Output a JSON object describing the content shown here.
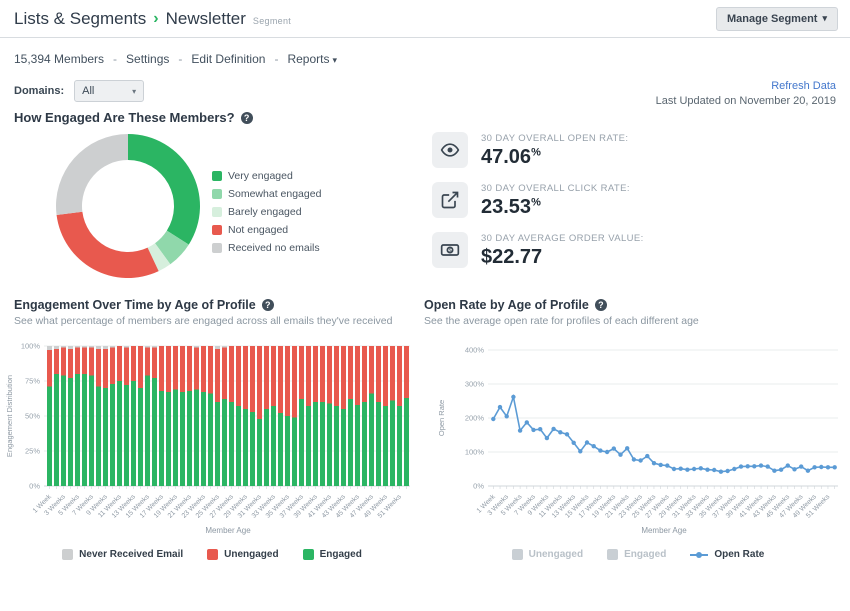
{
  "icons": {
    "breadcrumb_chevron": "›",
    "caret_down": "▾",
    "help_glyph": "?"
  },
  "header": {
    "breadcrumb_parent": "Lists & Segments",
    "title": "Newsletter",
    "badge": "Segment",
    "manage_button": "Manage Segment"
  },
  "toolbar": {
    "members": "15,394 Members",
    "separator": "-",
    "settings": "Settings",
    "edit_definition": "Edit Definition",
    "reports": "Reports",
    "domains_label": "Domains:",
    "domains_value": "All",
    "refresh": "Refresh Data",
    "last_updated": "Last Updated on November 20, 2019"
  },
  "sections": {
    "engagement": {
      "title": "How Engaged Are These Members?"
    },
    "over_time": {
      "title": "Engagement Over Time by Age of Profile",
      "subtitle": "See what percentage of members are engaged across all emails they've received"
    },
    "open_rate": {
      "title": "Open Rate by Age of Profile",
      "subtitle": "See the average open rate for profiles of each different age"
    }
  },
  "stats": {
    "open_rate": {
      "label": "30 DAY OVERALL OPEN RATE:",
      "value": "47.06",
      "suffix": "%"
    },
    "click_rate": {
      "label": "30 DAY OVERALL CLICK RATE:",
      "value": "23.53",
      "suffix": "%"
    },
    "aov": {
      "label": "30 DAY AVERAGE ORDER VALUE:",
      "value": "$22.77",
      "suffix": ""
    }
  },
  "colors": {
    "accent_green": "#2bb563",
    "light_green": "#90d8ab",
    "pale_green": "#d6efdd",
    "red": "#e8594e",
    "gray": "#cdcfd0",
    "line_blue": "#5b9bd5",
    "link_blue": "#4377cc"
  },
  "chart_data": [
    {
      "type": "pie",
      "donut": true,
      "title": "How Engaged Are These Members?",
      "legend_position": "right",
      "labels": [
        "Very engaged",
        "Somewhat engaged",
        "Barely engaged",
        "Not engaged",
        "Received no emails"
      ],
      "values": [
        34,
        6,
        3,
        30,
        27
      ],
      "colors": [
        "#2bb563",
        "#90d8ab",
        "#d6efdd",
        "#e8594e",
        "#cdcfd0"
      ]
    },
    {
      "type": "bar",
      "stacked": true,
      "title": "Engagement Over Time by Age of Profile",
      "xlabel": "Member Age",
      "ylabel": "Engagement Distribution",
      "ylim": [
        0,
        100
      ],
      "yticks": [
        "0%",
        "25%",
        "50%",
        "75%",
        "100%"
      ],
      "ytick_values": [
        0,
        25,
        50,
        75,
        100
      ],
      "label_every": 2,
      "categories": [
        "1 Week",
        "2 Weeks",
        "3 Weeks",
        "4 Weeks",
        "5 Weeks",
        "6 Weeks",
        "7 Weeks",
        "8 Weeks",
        "9 Weeks",
        "10 Weeks",
        "11 Weeks",
        "12 Weeks",
        "13 Weeks",
        "14 Weeks",
        "15 Weeks",
        "16 Weeks",
        "17 Weeks",
        "18 Weeks",
        "19 Weeks",
        "20 Weeks",
        "21 Weeks",
        "22 Weeks",
        "23 Weeks",
        "24 Weeks",
        "25 Weeks",
        "26 Weeks",
        "27 Weeks",
        "28 Weeks",
        "29 Weeks",
        "30 Weeks",
        "31 Weeks",
        "32 Weeks",
        "33 Weeks",
        "34 Weeks",
        "35 Weeks",
        "36 Weeks",
        "37 Weeks",
        "38 Weeks",
        "39 Weeks",
        "40 Weeks",
        "41 Weeks",
        "42 Weeks",
        "43 Weeks",
        "44 Weeks",
        "45 Weeks",
        "46 Weeks",
        "47 Weeks",
        "48 Weeks",
        "49 Weeks",
        "50 Weeks",
        "51 Weeks",
        "52 Weeks"
      ],
      "series": [
        {
          "name": "Engaged",
          "color": "#2bb563",
          "values": [
            71,
            80,
            79,
            77,
            80,
            80,
            79,
            71,
            70,
            73,
            75,
            72,
            75,
            70,
            79,
            77,
            68,
            67,
            69,
            67,
            68,
            69,
            67,
            66,
            60,
            62,
            60,
            57,
            55,
            53,
            48,
            55,
            57,
            52,
            50,
            49,
            62,
            57,
            60,
            60,
            59,
            57,
            55,
            62,
            58,
            60,
            66,
            60,
            57,
            61,
            57,
            63
          ]
        },
        {
          "name": "Unengaged",
          "color": "#e8594e",
          "values": [
            26,
            18,
            20,
            21,
            19,
            19,
            20,
            27,
            28,
            26,
            25,
            27,
            25,
            30,
            20,
            22,
            32,
            33,
            31,
            33,
            32,
            30,
            33,
            34,
            38,
            37,
            40,
            43,
            45,
            47,
            52,
            45,
            43,
            48,
            50,
            51,
            38,
            43,
            40,
            40,
            41,
            43,
            45,
            38,
            42,
            40,
            34,
            40,
            43,
            39,
            43,
            37
          ]
        },
        {
          "name": "Never Received Email",
          "color": "#cdcfd0",
          "values": [
            3,
            2,
            1,
            2,
            1,
            1,
            1,
            2,
            2,
            1,
            0,
            1,
            0,
            0,
            1,
            1,
            0,
            0,
            0,
            0,
            0,
            1,
            0,
            0,
            2,
            1,
            0,
            0,
            0,
            0,
            0,
            0,
            0,
            0,
            0,
            0,
            0,
            0,
            0,
            0,
            0,
            0,
            0,
            0,
            0,
            0,
            0,
            0,
            0,
            0,
            0,
            0
          ]
        }
      ],
      "legend": [
        {
          "label": "Never Received Email",
          "color": "#cdcfd0",
          "marker": "square",
          "disabled": false
        },
        {
          "label": "Unengaged",
          "color": "#e8594e",
          "marker": "square",
          "disabled": false
        },
        {
          "label": "Engaged",
          "color": "#2bb563",
          "marker": "square",
          "disabled": false
        }
      ]
    },
    {
      "type": "line",
      "title": "Open Rate by Age of Profile",
      "xlabel": "Member Age",
      "ylabel": "Open Rate",
      "ylim": [
        0,
        400
      ],
      "yticks": [
        "0%",
        "100%",
        "200%",
        "300%",
        "400%"
      ],
      "ytick_values": [
        0,
        100,
        200,
        300,
        400
      ],
      "label_every": 2,
      "categories": [
        "1 Week",
        "2 Weeks",
        "3 Weeks",
        "4 Weeks",
        "5 Weeks",
        "6 Weeks",
        "7 Weeks",
        "8 Weeks",
        "9 Weeks",
        "10 Weeks",
        "11 Weeks",
        "12 Weeks",
        "13 Weeks",
        "14 Weeks",
        "15 Weeks",
        "16 Weeks",
        "17 Weeks",
        "18 Weeks",
        "19 Weeks",
        "20 Weeks",
        "21 Weeks",
        "22 Weeks",
        "23 Weeks",
        "24 Weeks",
        "25 Weeks",
        "26 Weeks",
        "27 Weeks",
        "28 Weeks",
        "29 Weeks",
        "30 Weeks",
        "31 Weeks",
        "32 Weeks",
        "33 Weeks",
        "34 Weeks",
        "35 Weeks",
        "36 Weeks",
        "37 Weeks",
        "38 Weeks",
        "39 Weeks",
        "40 Weeks",
        "41 Weeks",
        "42 Weeks",
        "43 Weeks",
        "44 Weeks",
        "45 Weeks",
        "46 Weeks",
        "47 Weeks",
        "48 Weeks",
        "49 Weeks",
        "50 Weeks",
        "51 Weeks",
        "52 Weeks"
      ],
      "series": [
        {
          "name": "Open Rate",
          "color": "#5b9bd5",
          "values": [
            197,
            232,
            205,
            262,
            163,
            187,
            165,
            167,
            141,
            168,
            158,
            152,
            127,
            102,
            128,
            117,
            104,
            100,
            110,
            92,
            111,
            78,
            75,
            88,
            67,
            62,
            60,
            50,
            51,
            48,
            50,
            52,
            48,
            47,
            42,
            44,
            50,
            57,
            58,
            58,
            60,
            57,
            45,
            48,
            60,
            49,
            57,
            45,
            55,
            56,
            55,
            55
          ]
        }
      ],
      "legend": [
        {
          "label": "Unengaged",
          "color": "#c9cfd4",
          "marker": "square",
          "disabled": true
        },
        {
          "label": "Engaged",
          "color": "#c9cfd4",
          "marker": "square",
          "disabled": true
        },
        {
          "label": "Open Rate",
          "color": "#5b9bd5",
          "marker": "line",
          "disabled": false
        }
      ]
    }
  ]
}
